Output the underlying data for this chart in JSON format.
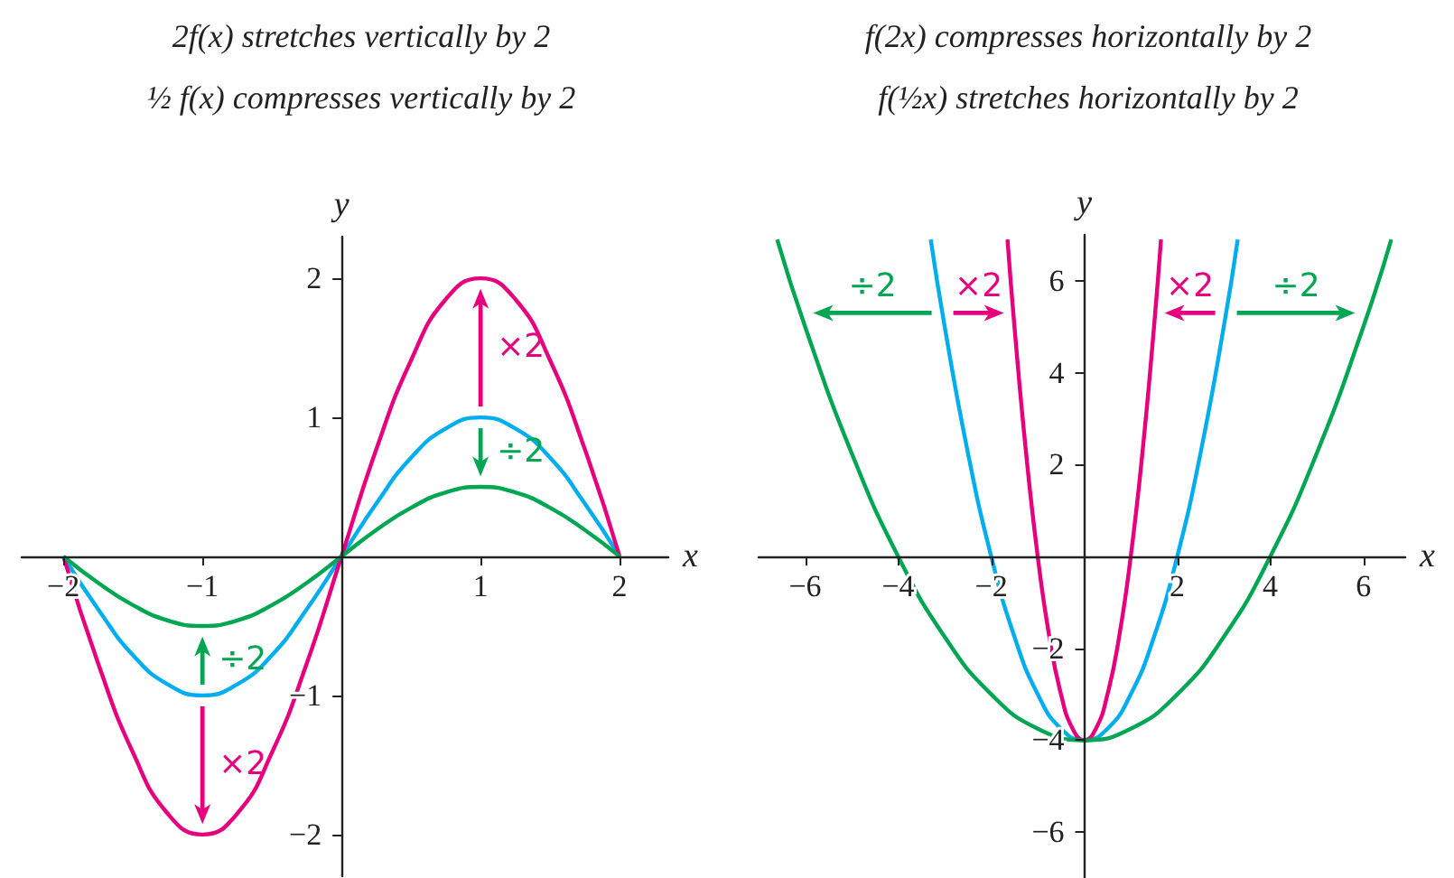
{
  "chart_data": [
    {
      "type": "line",
      "title": "2f(x) stretches vertically by 2",
      "subtitle": "½ f(x) compresses vertically by 2",
      "xlabel": "x",
      "ylabel": "y",
      "xlim": [
        -2.3,
        2.35
      ],
      "ylim": [
        -2.3,
        2.3
      ],
      "xticks": [
        {
          "value": -2,
          "label": "−2"
        },
        {
          "value": -1,
          "label": "−1"
        },
        1,
        2
      ],
      "yticks": [
        {
          "value": -2,
          "label": "−2"
        },
        {
          "value": -1,
          "label": "−1"
        },
        1,
        2
      ],
      "x": [
        -2,
        -1.75,
        -1.5,
        -1.25,
        -1,
        -0.75,
        -0.5,
        -0.25,
        0,
        0.25,
        0.5,
        0.75,
        1,
        1.25,
        1.5,
        1.75,
        2
      ],
      "series": [
        {
          "color": "#00aeef",
          "values": [
            0,
            -0.38,
            -0.71,
            -0.92,
            -1,
            -0.92,
            -0.71,
            -0.38,
            0,
            0.38,
            0.71,
            0.92,
            1,
            0.92,
            0.71,
            0.38,
            0
          ]
        },
        {
          "color": "#e6007e",
          "values": [
            0,
            -0.77,
            -1.41,
            -1.85,
            -2,
            -1.85,
            -1.41,
            -0.77,
            0,
            0.77,
            1.41,
            1.85,
            2,
            1.85,
            1.41,
            0.77,
            0
          ]
        },
        {
          "color": "#00a651",
          "values": [
            0,
            -0.19,
            -0.35,
            -0.46,
            -0.5,
            -0.46,
            -0.35,
            -0.19,
            0,
            0.19,
            0.35,
            0.46,
            0.5,
            0.46,
            0.35,
            0.19,
            0
          ]
        }
      ],
      "annotations": [
        {
          "text": "×2",
          "x": 1,
          "y": 1.95
        },
        {
          "text": "÷2",
          "x": 1,
          "y": 0.55
        },
        {
          "text": "÷2",
          "x": -1,
          "y": -0.55
        },
        {
          "text": "×2",
          "x": -1,
          "y": -1.95
        }
      ]
    },
    {
      "type": "line",
      "title": "f(2x) compresses horizontally by 2",
      "subtitle": "f(½x) stretches horizontally by 2",
      "xlabel": "x",
      "ylabel": "y",
      "xlim": [
        -7,
        6.9
      ],
      "ylim": [
        -7,
        7
      ],
      "xticks": [
        {
          "value": -6,
          "label": "−6"
        },
        {
          "value": -4,
          "label": "−4"
        },
        {
          "value": -2,
          "label": "−2"
        },
        2,
        4,
        6
      ],
      "yticks": [
        {
          "value": -6,
          "label": "−6"
        },
        {
          "value": -4,
          "label": "−4"
        },
        {
          "value": -2,
          "label": "−2"
        },
        2,
        4,
        6
      ],
      "series": [
        {
          "color": "#00aeef",
          "x": [
            -3.3,
            -3,
            -2.5,
            -2,
            -1.5,
            -1,
            -0.5,
            0,
            0.5,
            1,
            1.5,
            2,
            2.5,
            3,
            3.3
          ],
          "values": [
            6.9,
            5,
            2.25,
            0,
            -1.75,
            -3,
            -3.75,
            -4,
            -3.75,
            -3,
            -1.75,
            0,
            2.25,
            5,
            6.9
          ]
        },
        {
          "color": "#e6007e",
          "x": [
            -1.65,
            -1.5,
            -1.25,
            -1,
            -0.75,
            -0.5,
            -0.25,
            0,
            0.25,
            0.5,
            0.75,
            1,
            1.25,
            1.5,
            1.65
          ],
          "values": [
            6.9,
            5,
            2.25,
            0,
            -1.75,
            -3,
            -3.75,
            -4,
            -3.75,
            -3,
            -1.75,
            0,
            2.25,
            5,
            6.9
          ]
        },
        {
          "color": "#00a651",
          "x": [
            -6.6,
            -6,
            -5,
            -4,
            -3,
            -2,
            -1,
            0,
            1,
            2,
            3,
            4,
            5,
            6,
            6.6
          ],
          "values": [
            6.9,
            5,
            2.25,
            0,
            -1.75,
            -3,
            -3.75,
            -4,
            -3.75,
            -3,
            -1.75,
            0,
            2.25,
            5,
            6.9
          ]
        }
      ],
      "annotations": [
        {
          "text": "÷2",
          "x": -5.9,
          "y": 5.3
        },
        {
          "text": "×2",
          "x": -1.65,
          "y": 5.3
        },
        {
          "text": "×2",
          "x": 1.65,
          "y": 5.3
        },
        {
          "text": "÷2",
          "x": 5.9,
          "y": 5.3
        }
      ]
    }
  ]
}
